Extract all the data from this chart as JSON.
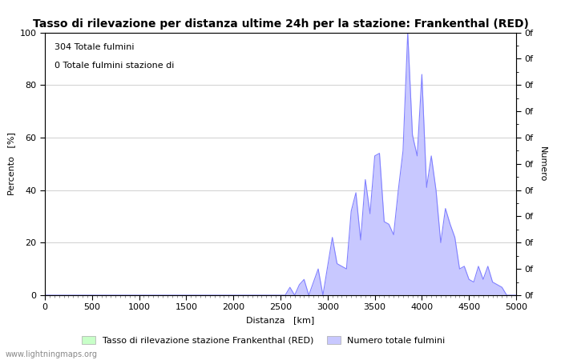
{
  "title": "Tasso di rilevazione per distanza ultime 24h per la stazione: Frankenthal (RED)",
  "xlabel": "Distanza   [km]",
  "ylabel_left": "Percento   [%]",
  "ylabel_right": "Numero",
  "annotation_line1": "304 Totale fulmini",
  "annotation_line2": "0 Totale fulmini stazione di",
  "watermark": "www.lightningmaps.org",
  "xlim": [
    0,
    5000
  ],
  "ylim": [
    0,
    100
  ],
  "xticks": [
    0,
    500,
    1000,
    1500,
    2000,
    2500,
    3000,
    3500,
    4000,
    4500,
    5000
  ],
  "yticks_left": [
    0,
    20,
    40,
    60,
    80,
    100
  ],
  "background_color": "#ffffff",
  "grid_color": "#c8c8c8",
  "line_color": "#8080ff",
  "fill_color": "#c8c8ff",
  "green_fill_color": "#c8ffc8",
  "legend_label1": "Tasso di rilevazione stazione Frankenthal (RED)",
  "legend_label2": "Numero totale fulmini",
  "title_fontsize": 10,
  "axis_fontsize": 8,
  "tick_fontsize": 8,
  "annotation_fontsize": 8,
  "x_data": [
    0,
    50,
    100,
    150,
    200,
    250,
    300,
    350,
    400,
    450,
    500,
    550,
    600,
    650,
    700,
    750,
    800,
    850,
    900,
    950,
    1000,
    1050,
    1100,
    1150,
    1200,
    1250,
    1300,
    1350,
    1400,
    1450,
    1500,
    1550,
    1600,
    1650,
    1700,
    1750,
    1800,
    1850,
    1900,
    1950,
    2000,
    2050,
    2100,
    2150,
    2200,
    2250,
    2300,
    2350,
    2400,
    2450,
    2500,
    2550,
    2600,
    2650,
    2700,
    2750,
    2800,
    2850,
    2900,
    2950,
    3000,
    3050,
    3100,
    3150,
    3200,
    3250,
    3300,
    3350,
    3400,
    3450,
    3500,
    3550,
    3600,
    3650,
    3700,
    3750,
    3800,
    3850,
    3900,
    3950,
    4000,
    4050,
    4100,
    4150,
    4200,
    4250,
    4300,
    4350,
    4400,
    4450,
    4500,
    4550,
    4600,
    4650,
    4700,
    4750,
    4800,
    4850,
    4900,
    4950,
    5000
  ],
  "y_line": [
    0,
    0,
    0,
    0,
    0,
    0,
    0,
    0,
    0,
    0,
    0,
    0,
    0,
    0,
    0,
    0,
    0,
    0,
    0,
    0,
    0,
    0,
    0,
    0,
    0,
    0,
    0,
    0,
    0,
    0,
    0,
    0,
    0,
    0,
    0,
    0,
    0,
    0,
    0,
    0,
    0,
    0,
    0,
    0,
    0,
    0,
    0,
    0,
    0,
    0,
    0,
    0,
    3,
    0,
    4,
    6,
    0,
    5,
    10,
    0,
    11,
    22,
    12,
    11,
    10,
    32,
    39,
    21,
    44,
    31,
    53,
    54,
    28,
    27,
    23,
    40,
    55,
    100,
    61,
    53,
    84,
    41,
    53,
    40,
    20,
    33,
    27,
    22,
    10,
    11,
    6,
    5,
    11,
    6,
    11,
    5,
    4,
    3,
    0,
    0,
    0
  ],
  "y_fill": [
    0,
    0,
    0,
    0,
    0,
    0,
    0,
    0,
    0,
    0,
    0,
    0,
    0,
    0,
    0,
    0,
    0,
    0,
    0,
    0,
    0,
    0,
    0,
    0,
    0,
    0,
    0,
    0,
    0,
    0,
    0,
    0,
    0,
    0,
    0,
    0,
    0,
    0,
    0,
    0,
    0,
    0,
    0,
    0,
    0,
    0,
    0,
    0,
    0,
    0,
    0,
    0,
    3,
    0,
    4,
    6,
    0,
    5,
    10,
    0,
    11,
    22,
    12,
    11,
    10,
    32,
    39,
    21,
    44,
    31,
    53,
    54,
    28,
    27,
    23,
    40,
    55,
    100,
    61,
    53,
    84,
    41,
    53,
    40,
    20,
    33,
    27,
    22,
    10,
    11,
    6,
    5,
    11,
    6,
    11,
    5,
    4,
    3,
    0,
    0,
    0
  ]
}
